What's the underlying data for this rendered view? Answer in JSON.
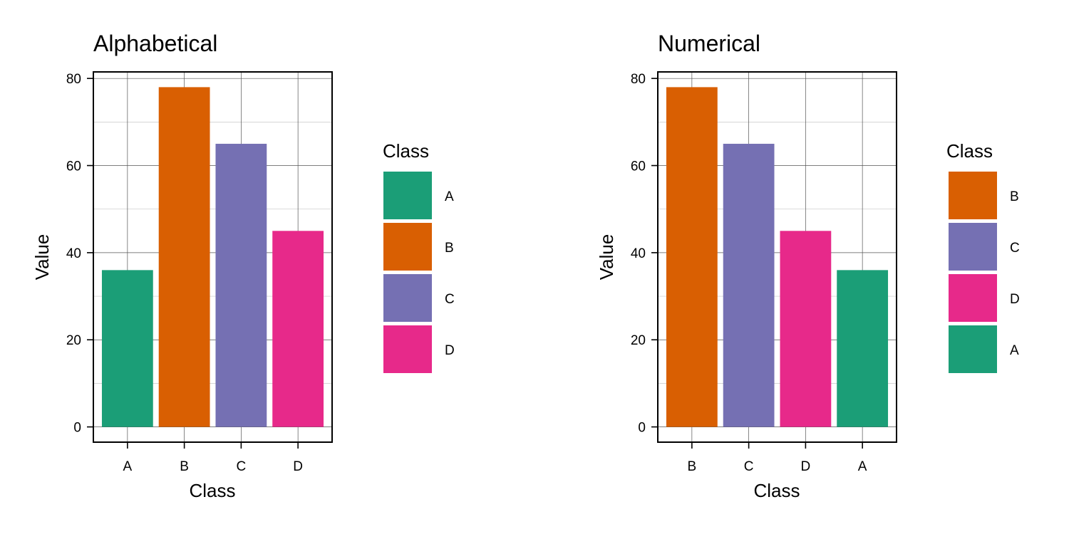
{
  "colors": {
    "A": "#1b9e77",
    "B": "#d95f02",
    "C": "#7570b3",
    "D": "#e7298a"
  },
  "chart_data": [
    {
      "type": "bar",
      "title": "Alphabetical",
      "xlabel": "Class",
      "ylabel": "Value",
      "categories": [
        "A",
        "B",
        "C",
        "D"
      ],
      "values": [
        36,
        78,
        65,
        45
      ],
      "ylim": [
        -3.5,
        81.5
      ],
      "yticks": [
        0,
        20,
        40,
        60,
        80
      ],
      "grid": true,
      "legend_title": "Class",
      "legend_items": [
        "A",
        "B",
        "C",
        "D"
      ],
      "legend_position": "right"
    },
    {
      "type": "bar",
      "title": "Numerical",
      "xlabel": "Class",
      "ylabel": "Value",
      "categories": [
        "B",
        "C",
        "D",
        "A"
      ],
      "values": [
        78,
        65,
        45,
        36
      ],
      "ylim": [
        -3.5,
        81.5
      ],
      "yticks": [
        0,
        20,
        40,
        60,
        80
      ],
      "grid": true,
      "legend_title": "Class",
      "legend_items": [
        "B",
        "C",
        "D",
        "A"
      ],
      "legend_position": "right"
    }
  ]
}
